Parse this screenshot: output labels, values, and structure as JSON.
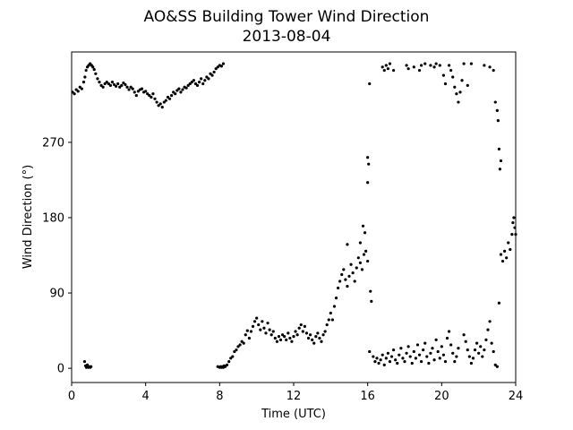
{
  "chart_data": {
    "type": "scatter",
    "title": "AO&SS Building Tower Wind Direction",
    "subtitle": "2013-08-04",
    "xlabel": "Time (UTC)",
    "ylabel": "Wind Direction (°)",
    "xlim": [
      0,
      24
    ],
    "ylim": [
      -17,
      378
    ],
    "xticks": [
      0,
      4,
      8,
      12,
      16,
      20,
      24
    ],
    "yticks": [
      0,
      90,
      180,
      270
    ],
    "grid": false,
    "marker_color": "#000000",
    "series": [
      {
        "points": [
          [
            0.05,
            330
          ],
          [
            0.15,
            328
          ],
          [
            0.25,
            333
          ],
          [
            0.35,
            331
          ],
          [
            0.45,
            336
          ],
          [
            0.55,
            334
          ],
          [
            0.65,
            342
          ],
          [
            0.72,
            348
          ],
          [
            0.78,
            356
          ],
          [
            0.85,
            360
          ],
          [
            0.92,
            362
          ],
          [
            1.0,
            364
          ],
          [
            1.08,
            362
          ],
          [
            1.15,
            360
          ],
          [
            1.22,
            357
          ],
          [
            1.3,
            352
          ],
          [
            1.4,
            346
          ],
          [
            1.5,
            342
          ],
          [
            1.6,
            338
          ],
          [
            1.7,
            336
          ],
          [
            1.8,
            340
          ],
          [
            1.9,
            342
          ],
          [
            2.0,
            340
          ],
          [
            2.1,
            338
          ],
          [
            2.2,
            342
          ],
          [
            2.3,
            339
          ],
          [
            2.4,
            337
          ],
          [
            2.5,
            340
          ],
          [
            2.6,
            336
          ],
          [
            2.7,
            338
          ],
          [
            2.8,
            341
          ],
          [
            2.9,
            339
          ],
          [
            3.0,
            336
          ],
          [
            3.1,
            333
          ],
          [
            3.2,
            336
          ],
          [
            3.3,
            334
          ],
          [
            3.4,
            330
          ],
          [
            3.5,
            326
          ],
          [
            3.6,
            331
          ],
          [
            3.7,
            333
          ],
          [
            3.8,
            334
          ],
          [
            3.9,
            330
          ],
          [
            4.0,
            331
          ],
          [
            4.1,
            328
          ],
          [
            4.2,
            326
          ],
          [
            4.3,
            324
          ],
          [
            4.4,
            328
          ],
          [
            4.5,
            322
          ],
          [
            4.6,
            318
          ],
          [
            4.7,
            314
          ],
          [
            4.8,
            316
          ],
          [
            4.9,
            312
          ],
          [
            5.0,
            318
          ],
          [
            5.1,
            320
          ],
          [
            5.2,
            324
          ],
          [
            5.3,
            322
          ],
          [
            5.4,
            326
          ],
          [
            5.5,
            330
          ],
          [
            5.6,
            328
          ],
          [
            5.7,
            332
          ],
          [
            5.8,
            334
          ],
          [
            5.9,
            330
          ],
          [
            6.0,
            333
          ],
          [
            6.1,
            336
          ],
          [
            6.2,
            335
          ],
          [
            6.3,
            338
          ],
          [
            6.4,
            340
          ],
          [
            6.5,
            342
          ],
          [
            6.6,
            344
          ],
          [
            6.7,
            340
          ],
          [
            6.8,
            338
          ],
          [
            6.9,
            342
          ],
          [
            7.0,
            346
          ],
          [
            7.1,
            340
          ],
          [
            7.2,
            344
          ],
          [
            7.3,
            348
          ],
          [
            7.4,
            346
          ],
          [
            7.5,
            352
          ],
          [
            7.6,
            350
          ],
          [
            7.7,
            354
          ],
          [
            7.8,
            358
          ],
          [
            7.9,
            360
          ],
          [
            8.0,
            362
          ],
          [
            8.1,
            361
          ],
          [
            8.2,
            364
          ],
          [
            0.7,
            8
          ],
          [
            0.75,
            3
          ],
          [
            0.8,
            1
          ],
          [
            0.85,
            4
          ],
          [
            0.9,
            1
          ],
          [
            0.95,
            2
          ],
          [
            1.0,
            1
          ],
          [
            1.05,
            2
          ],
          [
            7.9,
            2
          ],
          [
            8.0,
            1
          ],
          [
            8.05,
            2
          ],
          [
            8.1,
            1
          ],
          [
            8.15,
            2
          ],
          [
            8.2,
            1
          ],
          [
            8.25,
            3
          ],
          [
            8.3,
            2
          ],
          [
            8.4,
            4
          ],
          [
            8.5,
            8
          ],
          [
            8.6,
            12
          ],
          [
            8.7,
            14
          ],
          [
            8.8,
            20
          ],
          [
            8.9,
            22
          ],
          [
            9.0,
            26
          ],
          [
            9.1,
            28
          ],
          [
            9.2,
            32
          ],
          [
            9.3,
            30
          ],
          [
            9.4,
            40
          ],
          [
            9.5,
            45
          ],
          [
            9.6,
            36
          ],
          [
            9.7,
            44
          ],
          [
            9.8,
            50
          ],
          [
            9.9,
            56
          ],
          [
            10.0,
            60
          ],
          [
            10.1,
            52
          ],
          [
            10.2,
            46
          ],
          [
            10.3,
            56
          ],
          [
            10.4,
            48
          ],
          [
            10.5,
            42
          ],
          [
            10.6,
            54
          ],
          [
            10.7,
            46
          ],
          [
            10.8,
            40
          ],
          [
            10.9,
            44
          ],
          [
            11.0,
            36
          ],
          [
            11.1,
            32
          ],
          [
            11.2,
            38
          ],
          [
            11.3,
            34
          ],
          [
            11.4,
            40
          ],
          [
            11.5,
            38
          ],
          [
            11.6,
            34
          ],
          [
            11.7,
            42
          ],
          [
            11.8,
            36
          ],
          [
            11.9,
            32
          ],
          [
            12.0,
            38
          ],
          [
            12.1,
            44
          ],
          [
            12.2,
            40
          ],
          [
            12.3,
            48
          ],
          [
            12.4,
            52
          ],
          [
            12.5,
            44
          ],
          [
            12.6,
            50
          ],
          [
            12.7,
            42
          ],
          [
            12.8,
            36
          ],
          [
            12.9,
            40
          ],
          [
            13.0,
            34
          ],
          [
            13.1,
            30
          ],
          [
            13.2,
            38
          ],
          [
            13.3,
            42
          ],
          [
            13.4,
            36
          ],
          [
            13.5,
            32
          ],
          [
            13.6,
            40
          ],
          [
            13.7,
            44
          ],
          [
            13.8,
            52
          ],
          [
            13.9,
            58
          ],
          [
            14.0,
            66
          ],
          [
            14.1,
            58
          ],
          [
            14.2,
            74
          ],
          [
            14.3,
            84
          ],
          [
            14.4,
            96
          ],
          [
            14.5,
            104
          ],
          [
            14.6,
            112
          ],
          [
            14.7,
            118
          ],
          [
            14.8,
            106
          ],
          [
            14.9,
            98
          ],
          [
            15.0,
            110
          ],
          [
            15.1,
            124
          ],
          [
            15.2,
            114
          ],
          [
            15.3,
            104
          ],
          [
            15.4,
            120
          ],
          [
            15.5,
            132
          ],
          [
            15.6,
            126
          ],
          [
            15.7,
            118
          ],
          [
            15.8,
            136
          ],
          [
            15.9,
            140
          ],
          [
            16.0,
            128
          ],
          [
            15.75,
            170
          ],
          [
            15.85,
            162
          ],
          [
            15.6,
            150
          ],
          [
            14.9,
            148
          ],
          [
            16.0,
            252
          ],
          [
            16.05,
            244
          ],
          [
            16.0,
            222
          ],
          [
            16.1,
            340
          ],
          [
            16.15,
            92
          ],
          [
            16.2,
            80
          ],
          [
            16.1,
            20
          ],
          [
            16.3,
            14
          ],
          [
            16.4,
            8
          ],
          [
            16.5,
            12
          ],
          [
            16.6,
            6
          ],
          [
            16.7,
            10
          ],
          [
            16.8,
            16
          ],
          [
            16.9,
            4
          ],
          [
            17.0,
            12
          ],
          [
            17.1,
            18
          ],
          [
            17.2,
            8
          ],
          [
            17.3,
            14
          ],
          [
            17.4,
            22
          ],
          [
            17.5,
            10
          ],
          [
            17.6,
            6
          ],
          [
            17.7,
            16
          ],
          [
            17.8,
            24
          ],
          [
            17.9,
            12
          ],
          [
            18.0,
            8
          ],
          [
            18.1,
            18
          ],
          [
            18.2,
            26
          ],
          [
            18.3,
            14
          ],
          [
            18.4,
            6
          ],
          [
            18.5,
            20
          ],
          [
            18.6,
            12
          ],
          [
            18.7,
            28
          ],
          [
            18.8,
            16
          ],
          [
            18.9,
            8
          ],
          [
            19.0,
            22
          ],
          [
            19.1,
            30
          ],
          [
            19.2,
            14
          ],
          [
            19.3,
            6
          ],
          [
            19.4,
            18
          ],
          [
            19.5,
            24
          ],
          [
            19.6,
            10
          ],
          [
            19.7,
            34
          ],
          [
            19.8,
            20
          ],
          [
            19.9,
            12
          ],
          [
            20.0,
            26
          ],
          [
            20.1,
            16
          ],
          [
            20.2,
            8
          ],
          [
            20.3,
            36
          ],
          [
            20.4,
            44
          ],
          [
            20.5,
            28
          ],
          [
            20.6,
            18
          ],
          [
            20.7,
            8
          ],
          [
            20.8,
            14
          ],
          [
            20.9,
            24
          ],
          [
            16.8,
            360
          ],
          [
            16.9,
            356
          ],
          [
            17.0,
            362
          ],
          [
            17.1,
            358
          ],
          [
            17.2,
            364
          ],
          [
            17.4,
            356
          ],
          [
            18.1,
            362
          ],
          [
            18.2,
            358
          ],
          [
            18.5,
            360
          ],
          [
            18.8,
            356
          ],
          [
            18.9,
            362
          ],
          [
            19.1,
            364
          ],
          [
            19.4,
            362
          ],
          [
            19.6,
            360
          ],
          [
            19.7,
            364
          ],
          [
            19.9,
            362
          ],
          [
            20.1,
            350
          ],
          [
            20.2,
            340
          ],
          [
            20.4,
            362
          ],
          [
            20.5,
            356
          ],
          [
            20.6,
            348
          ],
          [
            20.7,
            336
          ],
          [
            20.8,
            328
          ],
          [
            20.9,
            318
          ],
          [
            21.0,
            330
          ],
          [
            21.1,
            344
          ],
          [
            21.2,
            364
          ],
          [
            21.4,
            338
          ],
          [
            21.6,
            364
          ],
          [
            21.2,
            40
          ],
          [
            21.3,
            32
          ],
          [
            21.4,
            22
          ],
          [
            21.5,
            14
          ],
          [
            21.6,
            6
          ],
          [
            21.7,
            12
          ],
          [
            21.8,
            22
          ],
          [
            21.9,
            30
          ],
          [
            22.0,
            18
          ],
          [
            22.1,
            26
          ],
          [
            22.2,
            14
          ],
          [
            22.3,
            22
          ],
          [
            22.4,
            34
          ],
          [
            22.5,
            46
          ],
          [
            22.6,
            56
          ],
          [
            22.7,
            30
          ],
          [
            22.8,
            20
          ],
          [
            22.9,
            4
          ],
          [
            23.0,
            2
          ],
          [
            22.8,
            356
          ],
          [
            22.3,
            362
          ],
          [
            22.6,
            360
          ],
          [
            22.9,
            318
          ],
          [
            23.0,
            308
          ],
          [
            23.05,
            296
          ],
          [
            23.1,
            262
          ],
          [
            23.15,
            238
          ],
          [
            23.2,
            248
          ],
          [
            23.2,
            136
          ],
          [
            23.3,
            128
          ],
          [
            23.4,
            140
          ],
          [
            23.5,
            132
          ],
          [
            23.6,
            150
          ],
          [
            23.7,
            142
          ],
          [
            23.8,
            160
          ],
          [
            23.85,
            174
          ],
          [
            23.9,
            180
          ],
          [
            23.95,
            168
          ],
          [
            24.0,
            160
          ],
          [
            23.1,
            78
          ]
        ]
      }
    ]
  }
}
